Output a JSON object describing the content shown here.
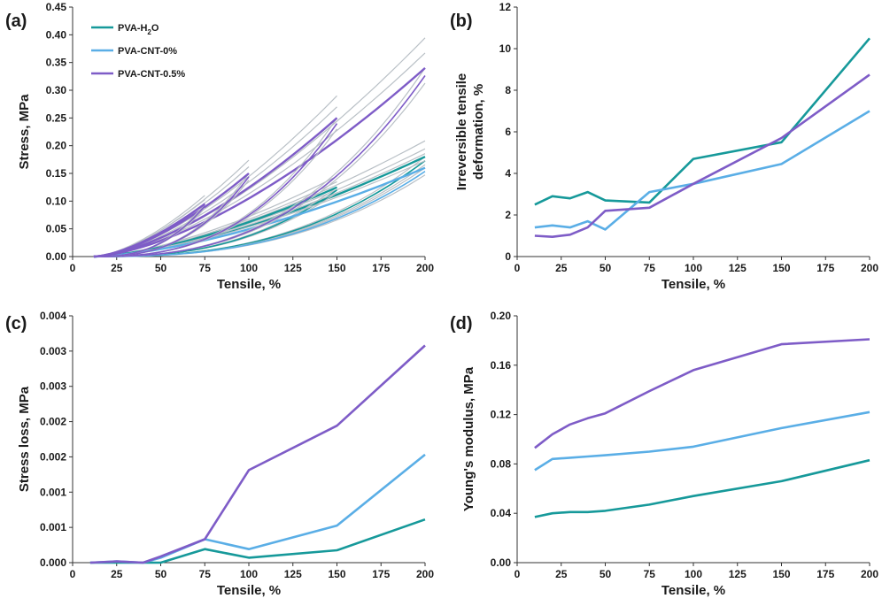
{
  "colors": {
    "pva_h2o": "#16999a",
    "pva_cnt_0": "#5aaee6",
    "pva_cnt_05": "#7e5cc7",
    "cycle_grey": "#b9c0c6",
    "axis": "#333333"
  },
  "chart_data": [
    {
      "id": "a",
      "panel_label": "(a)",
      "type": "line",
      "title": "",
      "xlabel": "Tensile, %",
      "ylabel": "Stress, MPa",
      "xlim": [
        0,
        200
      ],
      "ylim": [
        0,
        0.45
      ],
      "xticks": [
        0,
        25,
        50,
        75,
        100,
        125,
        150,
        175,
        200
      ],
      "yticks": [
        "0.00",
        "0.05",
        "0.10",
        "0.15",
        "0.20",
        "0.25",
        "0.30",
        "0.35",
        "0.40",
        "0.45"
      ],
      "legend_position": "top-left",
      "legend": [
        {
          "name": "PVA-H2O",
          "label_main": "PVA-H",
          "label_sub": "2",
          "label_tail": "O",
          "color_key": "pva_h2o"
        },
        {
          "name": "PVA-CNT-0%",
          "label_main": "PVA-CNT-0%",
          "label_sub": "",
          "label_tail": "",
          "color_key": "pva_cnt_0"
        },
        {
          "name": "PVA-CNT-0.5%",
          "label_main": "PVA-CNT-0.5%",
          "label_sub": "",
          "label_tail": "",
          "color_key": "pva_cnt_05"
        }
      ],
      "cyclic_curves": [
        {
          "series": "PVA-H2O",
          "max_strain": 200,
          "max_stress": 0.18
        },
        {
          "series": "PVA-H2O",
          "max_strain": 150,
          "max_stress": 0.125
        },
        {
          "series": "PVA-CNT-0%",
          "max_strain": 200,
          "max_stress": 0.16
        },
        {
          "series": "PVA-CNT-0.5%",
          "max_strain": 200,
          "max_stress": 0.34
        },
        {
          "series": "PVA-CNT-0.5%",
          "max_strain": 150,
          "max_stress": 0.25
        },
        {
          "series": "PVA-CNT-0.5%",
          "max_strain": 100,
          "max_stress": 0.15
        },
        {
          "series": "PVA-CNT-0.5%",
          "max_strain": 75,
          "max_stress": 0.095
        }
      ]
    },
    {
      "id": "b",
      "panel_label": "(b)",
      "type": "line",
      "xlabel": "Tensile, %",
      "ylabel_lines": [
        "Irreversible tensile",
        "deformation, %"
      ],
      "xlim": [
        0,
        200
      ],
      "ylim": [
        0,
        12
      ],
      "xticks": [
        0,
        25,
        50,
        75,
        100,
        125,
        150,
        175,
        200
      ],
      "yticks": [
        "0",
        "2",
        "4",
        "6",
        "8",
        "10",
        "12"
      ],
      "series": [
        {
          "name": "PVA-H2O",
          "color_key": "pva_h2o",
          "x": [
            10,
            20,
            30,
            40,
            50,
            75,
            100,
            150,
            200
          ],
          "y": [
            2.5,
            2.9,
            2.8,
            3.1,
            2.7,
            2.6,
            4.7,
            5.5,
            10.5
          ]
        },
        {
          "name": "PVA-CNT-0%",
          "color_key": "pva_cnt_0",
          "x": [
            10,
            20,
            30,
            40,
            50,
            75,
            100,
            150,
            200
          ],
          "y": [
            1.4,
            1.5,
            1.4,
            1.7,
            1.3,
            3.1,
            3.5,
            4.45,
            7.0
          ]
        },
        {
          "name": "PVA-CNT-0.5%",
          "color_key": "pva_cnt_05",
          "x": [
            10,
            20,
            30,
            40,
            50,
            75,
            100,
            150,
            200
          ],
          "y": [
            1.0,
            0.95,
            1.05,
            1.4,
            2.2,
            2.35,
            3.5,
            5.7,
            8.75
          ]
        }
      ]
    },
    {
      "id": "c",
      "panel_label": "(c)",
      "type": "line",
      "xlabel": "Tensile, %",
      "ylabel": "Stress loss, MPa",
      "xlim": [
        0,
        200
      ],
      "ylim": [
        0,
        0.004
      ],
      "xticks": [
        0,
        25,
        50,
        75,
        100,
        125,
        150,
        175,
        200
      ],
      "yticks": [
        "0.000",
        "0.001",
        "0.001",
        "0.002",
        "0.002",
        "0.003",
        "0.003",
        "0.004"
      ],
      "series": [
        {
          "name": "PVA-H2O",
          "color_key": "pva_h2o",
          "x": [
            10,
            25,
            40,
            50,
            75,
            100,
            150,
            200
          ],
          "y": [
            0.0,
            0.0,
            0.0,
            0.0,
            0.00022,
            8e-05,
            0.0002,
            0.0007
          ]
        },
        {
          "name": "PVA-CNT-0%",
          "color_key": "pva_cnt_0",
          "x": [
            10,
            25,
            40,
            50,
            75,
            100,
            150,
            200
          ],
          "y": [
            0.0,
            2e-05,
            0.0,
            8e-05,
            0.00038,
            0.00022,
            0.0006,
            0.00175
          ]
        },
        {
          "name": "PVA-CNT-0.5%",
          "color_key": "pva_cnt_05",
          "x": [
            10,
            25,
            40,
            50,
            75,
            100,
            150,
            200
          ],
          "y": [
            0.0,
            2e-05,
            0.0,
            0.0001,
            0.00038,
            0.0015,
            0.00222,
            0.00352
          ]
        }
      ]
    },
    {
      "id": "d",
      "panel_label": "(d)",
      "type": "line",
      "xlabel": "Tensile, %",
      "ylabel": "Young's  modulus, MPa",
      "xlim": [
        0,
        200
      ],
      "ylim": [
        0,
        0.2
      ],
      "xticks": [
        0,
        25,
        50,
        75,
        100,
        125,
        150,
        175,
        200
      ],
      "yticks": [
        "0.00",
        "0.04",
        "0.08",
        "0.12",
        "0.16",
        "0.20"
      ],
      "series": [
        {
          "name": "PVA-H2O",
          "color_key": "pva_h2o",
          "x": [
            10,
            20,
            30,
            40,
            50,
            75,
            100,
            150,
            200
          ],
          "y": [
            0.037,
            0.04,
            0.041,
            0.041,
            0.042,
            0.047,
            0.054,
            0.066,
            0.083
          ]
        },
        {
          "name": "PVA-CNT-0%",
          "color_key": "pva_cnt_0",
          "x": [
            10,
            20,
            30,
            40,
            50,
            75,
            100,
            150,
            200
          ],
          "y": [
            0.075,
            0.084,
            0.085,
            0.086,
            0.087,
            0.09,
            0.094,
            0.109,
            0.122
          ]
        },
        {
          "name": "PVA-CNT-0.5%",
          "color_key": "pva_cnt_05",
          "x": [
            10,
            20,
            30,
            40,
            50,
            75,
            100,
            150,
            200
          ],
          "y": [
            0.093,
            0.104,
            0.112,
            0.117,
            0.121,
            0.139,
            0.156,
            0.177,
            0.181
          ]
        }
      ]
    }
  ]
}
